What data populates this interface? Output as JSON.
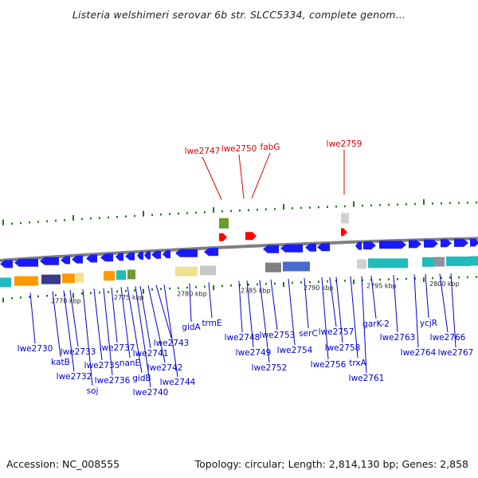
{
  "title": "Listeria welshimeri serovar 6b str. SLCC5334, complete genom...",
  "footer": {
    "accession": "Accession: NC_008555",
    "topology": "Topology: circular; Length: 2,814,130 bp; Genes: 2,858"
  },
  "colors": {
    "gene_forward": "#1a1aff",
    "gene_highlight": "#ff0000",
    "label_blue": "#0000cc",
    "label_red": "#dd0000",
    "ticks_green": "#1a7a1a",
    "backbone": "#808080"
  },
  "scale_labels": [
    "2770 kbp",
    "2775 kbp",
    "2780 kbp",
    "2785 kbp",
    "2790 kbp",
    "2795 kbp",
    "2800 kbp"
  ],
  "highlighted_genes": [
    "lwe2747",
    "lwe2750",
    "fabG",
    "lwe2759"
  ],
  "gene_labels": [
    "lwe2730",
    "katB",
    "lwe2732",
    "lwe2733",
    "soj",
    "lwe2735",
    "lwe2736",
    "lwe2737",
    "nanE",
    "gidB",
    "lwe2740",
    "lwe2741",
    "lwe2742",
    "lwe2743",
    "lwe2744",
    "gidA",
    "trmE",
    "lwe2748",
    "lwe2749",
    "lwe2752",
    "lwe2753",
    "lwe2754",
    "serC",
    "lwe2756",
    "lwe2757",
    "lwe2758",
    "trxA",
    "lwe2761",
    "garK-2",
    "lwe2763",
    "lwe2764",
    "ycjR",
    "lwe2766",
    "lwe2767"
  ]
}
